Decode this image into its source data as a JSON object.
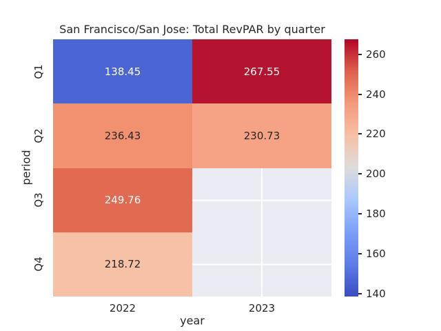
{
  "chart_data": {
    "type": "heatmap",
    "title": "San Francisco/San Jose: Total RevPAR by quarter",
    "xlabel": "year",
    "ylabel": "period",
    "x_categories": [
      "2022",
      "2023"
    ],
    "y_categories": [
      "Q1",
      "Q2",
      "Q3",
      "Q4"
    ],
    "values": [
      [
        138.45,
        267.55
      ],
      [
        236.43,
        230.73
      ],
      [
        249.76,
        null
      ],
      [
        218.72,
        null
      ]
    ],
    "annotations": [
      [
        "138.45",
        "267.55"
      ],
      [
        "236.43",
        "230.73"
      ],
      [
        "249.76",
        ""
      ],
      [
        "218.72",
        ""
      ]
    ],
    "cell_colors": [
      [
        "#4a66d5",
        "#b5132e"
      ],
      [
        "#f1916f",
        "#f5a285"
      ],
      [
        "#e16a51",
        null
      ],
      [
        "#f6c1a5",
        null
      ]
    ],
    "missing_cell_color": "#eaeaf2",
    "grid_line_color": "#ffffff",
    "colormap": "coolwarm",
    "annotation_color_dark": "#262626",
    "annotation_color_light": "#ffffff",
    "colorbar": {
      "vmin": 138.45,
      "vmax": 267.55,
      "ticks": [
        260,
        240,
        220,
        200,
        180,
        160,
        140
      ],
      "gradient_stops_bottom_to_top": [
        "#3b4cc0",
        "#5d7ce6",
        "#7c9ff9",
        "#aac7fd",
        "#dddcdc",
        "#f5c0a7",
        "#f49a7b",
        "#de614d",
        "#b40426"
      ]
    },
    "legend_position": "right",
    "grid": true
  }
}
